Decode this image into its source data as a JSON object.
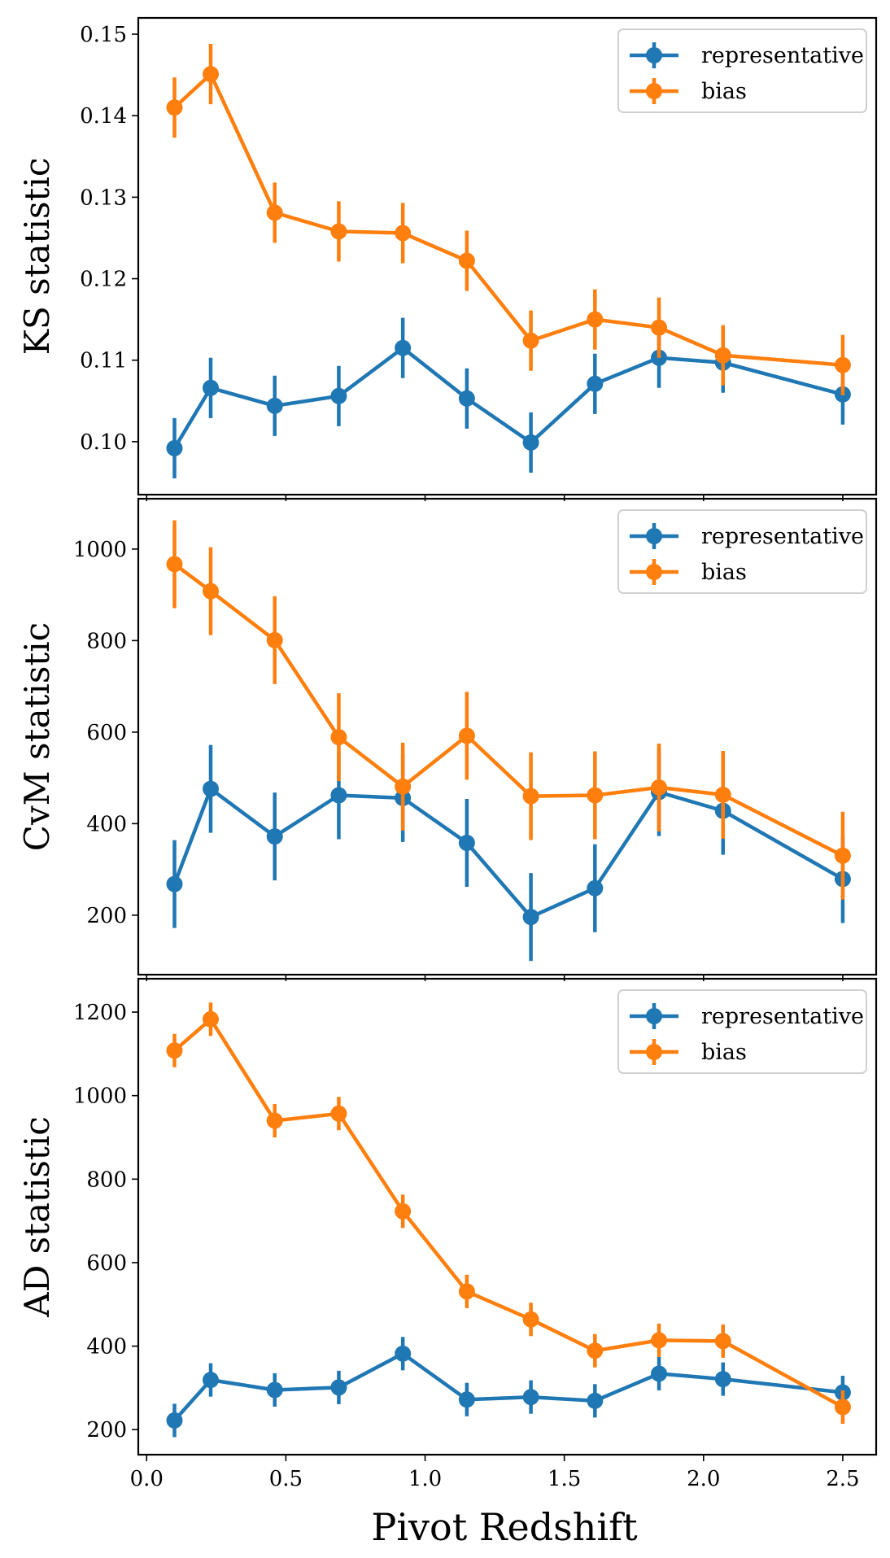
{
  "figure": {
    "xlabel": "Pivot Redshift",
    "x_tick_labels": [
      "0.0",
      "0.5",
      "1.0",
      "1.5",
      "2.0",
      "2.5"
    ]
  },
  "chart_data": [
    {
      "type": "line",
      "title": "",
      "xlabel": "Pivot Redshift",
      "ylabel": "KS statistic",
      "xlim": [
        -0.03,
        2.62
      ],
      "ylim": [
        0.0935,
        0.152
      ],
      "xticks": [
        0.0,
        0.5,
        1.0,
        1.5,
        2.0,
        2.5
      ],
      "yticks": [
        0.1,
        0.11,
        0.12,
        0.13,
        0.14,
        0.15
      ],
      "ytick_labels": [
        "0.10",
        "0.11",
        "0.12",
        "0.13",
        "0.14",
        "0.15"
      ],
      "legend": "top-right",
      "x": [
        0.1,
        0.23,
        0.46,
        0.69,
        0.92,
        1.15,
        1.38,
        1.61,
        1.84,
        2.07,
        2.5
      ],
      "series": [
        {
          "name": "representative",
          "color": "#1f77b4",
          "values": [
            0.0992,
            0.1066,
            0.1044,
            0.1056,
            0.1115,
            0.1053,
            0.0999,
            0.1071,
            0.1103,
            0.1097,
            0.1058
          ],
          "errors": [
            0.0037,
            0.0037,
            0.0037,
            0.0037,
            0.0037,
            0.0037,
            0.0037,
            0.0037,
            0.0037,
            0.0037,
            0.0037
          ]
        },
        {
          "name": "bias",
          "color": "#ff7f0e",
          "values": [
            0.141,
            0.1451,
            0.1281,
            0.1258,
            0.1256,
            0.1222,
            0.1124,
            0.115,
            0.114,
            0.1106,
            0.1094
          ],
          "errors": [
            0.0037,
            0.0037,
            0.0037,
            0.0037,
            0.0037,
            0.0037,
            0.0037,
            0.0037,
            0.0037,
            0.0037,
            0.0037
          ]
        }
      ]
    },
    {
      "type": "line",
      "title": "",
      "xlabel": "Pivot Redshift",
      "ylabel": "CvM statistic",
      "xlim": [
        -0.03,
        2.62
      ],
      "ylim": [
        70,
        1110
      ],
      "xticks": [
        0.0,
        0.5,
        1.0,
        1.5,
        2.0,
        2.5
      ],
      "yticks": [
        200,
        400,
        600,
        800,
        1000
      ],
      "ytick_labels": [
        "200",
        "400",
        "600",
        "800",
        "1000"
      ],
      "legend": "top-right",
      "x": [
        0.1,
        0.23,
        0.46,
        0.69,
        0.92,
        1.15,
        1.38,
        1.61,
        1.84,
        2.07,
        2.5
      ],
      "series": [
        {
          "name": "representative",
          "color": "#1f77b4",
          "values": [
            268,
            476,
            372,
            462,
            456,
            358,
            196,
            259,
            469,
            428,
            279
          ],
          "errors": [
            96,
            96,
            96,
            96,
            96,
            96,
            96,
            96,
            96,
            96,
            96
          ]
        },
        {
          "name": "bias",
          "color": "#ff7f0e",
          "values": [
            967,
            908,
            801,
            589,
            481,
            592,
            460,
            462,
            479,
            463,
            330
          ],
          "errors": [
            96,
            96,
            96,
            96,
            96,
            96,
            96,
            96,
            96,
            96,
            96
          ]
        }
      ]
    },
    {
      "type": "line",
      "title": "",
      "xlabel": "Pivot Redshift",
      "ylabel": "AD statistic",
      "xlim": [
        -0.03,
        2.62
      ],
      "ylim": [
        140,
        1280
      ],
      "xticks": [
        0.0,
        0.5,
        1.0,
        1.5,
        2.0,
        2.5
      ],
      "yticks": [
        200,
        400,
        600,
        800,
        1000,
        1200
      ],
      "ytick_labels": [
        "200",
        "400",
        "600",
        "800",
        "1000",
        "1200"
      ],
      "legend": "top-right",
      "x": [
        0.1,
        0.23,
        0.46,
        0.69,
        0.92,
        1.15,
        1.38,
        1.61,
        1.84,
        2.07,
        2.5
      ],
      "series": [
        {
          "name": "representative",
          "color": "#1f77b4",
          "values": [
            222,
            319,
            295,
            301,
            382,
            272,
            278,
            269,
            334,
            321,
            289
          ],
          "errors": [
            40,
            40,
            40,
            40,
            40,
            40,
            40,
            40,
            40,
            40,
            40
          ]
        },
        {
          "name": "bias",
          "color": "#ff7f0e",
          "values": [
            1108,
            1183,
            940,
            957,
            723,
            531,
            464,
            389,
            414,
            412,
            254
          ],
          "errors": [
            40,
            40,
            40,
            40,
            40,
            40,
            40,
            40,
            40,
            40,
            40
          ]
        }
      ]
    }
  ]
}
